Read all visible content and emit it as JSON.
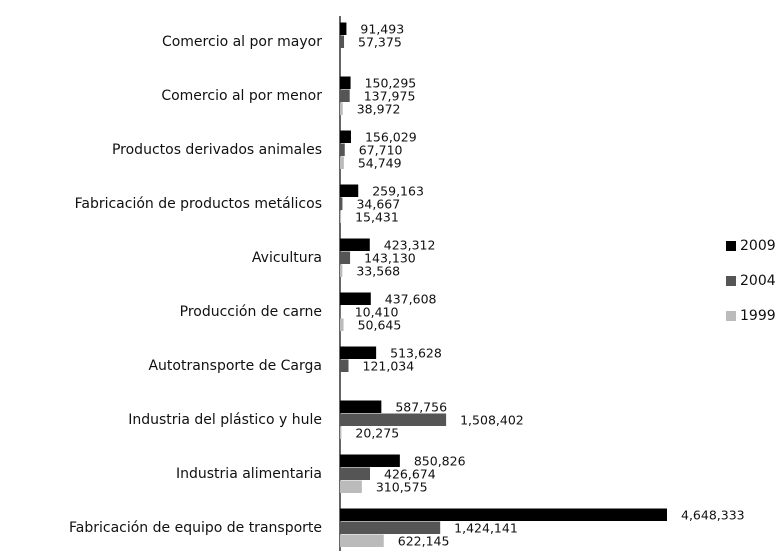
{
  "chart_data": {
    "type": "barh",
    "categories": [
      "Comercio al por mayor",
      "Comercio al por menor",
      "Productos derivados animales",
      "Fabricación de productos metálicos",
      "Avicultura",
      "Producción de carne",
      "Autotransporte de Carga",
      "Industria del plástico y hule",
      "Industria alimentaria",
      "Fabricación de equipo de transporte"
    ],
    "series": [
      {
        "name": "2009",
        "color": "#000000",
        "values": [
          91493,
          150295,
          156029,
          259163,
          423312,
          437608,
          513628,
          587756,
          850826,
          4648333
        ],
        "value_labels": [
          "91,493",
          "150,295",
          "156,029",
          "259,163",
          "423,312",
          "437,608",
          "513,628",
          "587,756",
          "850,826",
          "4,648,333"
        ]
      },
      {
        "name": "2004",
        "color": "#555555",
        "values": [
          57375,
          137975,
          67710,
          34667,
          143130,
          10410,
          121034,
          1508402,
          426674,
          1424141
        ],
        "value_labels": [
          "57,375",
          "137,975",
          "67,710",
          "34,667",
          "143,130",
          "10,410",
          "121,034",
          "1,508,402",
          "426,674",
          "1,424,141"
        ]
      },
      {
        "name": "1999",
        "color": "#bbbbbb",
        "values": [
          null,
          38972,
          54749,
          15431,
          33568,
          50645,
          null,
          20275,
          310575,
          622145
        ],
        "value_labels": [
          null,
          "38,972",
          "54,749",
          "15,431",
          "33,568",
          "50,645",
          null,
          "20,275",
          "310,575",
          "622,145"
        ]
      }
    ],
    "legend": "right"
  }
}
